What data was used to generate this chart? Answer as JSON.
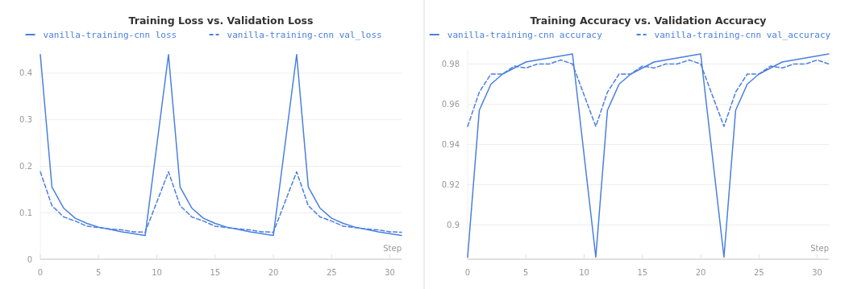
{
  "chart_data": [
    {
      "type": "line",
      "title": "Training Loss vs. Validation Loss",
      "xlabel": "Step",
      "xlim": [
        0,
        31
      ],
      "xticks": [
        0,
        5,
        10,
        15,
        20,
        25,
        30
      ],
      "ylim": [
        0,
        0.45
      ],
      "yticks": [
        0,
        0.1,
        0.2,
        0.3,
        0.4
      ],
      "grid": "y",
      "legend": "top",
      "series": [
        {
          "name": "vanilla-training-cnn loss",
          "color": "#4a7fe0",
          "line_style": "solid",
          "x": [
            0,
            1,
            2,
            3,
            4,
            5,
            6,
            7,
            8,
            9,
            11,
            12,
            13,
            14,
            15,
            16,
            17,
            18,
            19,
            20,
            22,
            23,
            24,
            25,
            26,
            27,
            28,
            29,
            30,
            31
          ],
          "values": [
            0.44,
            0.155,
            0.11,
            0.088,
            0.077,
            0.069,
            0.064,
            0.059,
            0.055,
            0.051,
            0.44,
            0.155,
            0.11,
            0.088,
            0.077,
            0.069,
            0.064,
            0.059,
            0.055,
            0.051,
            0.44,
            0.155,
            0.11,
            0.088,
            0.077,
            0.069,
            0.064,
            0.059,
            0.055,
            0.051
          ]
        },
        {
          "name": "vanilla-training-cnn val_loss",
          "color": "#4a7fe0",
          "line_style": "dashed",
          "x": [
            0,
            1,
            2,
            3,
            4,
            5,
            6,
            7,
            8,
            9,
            11,
            12,
            13,
            14,
            15,
            16,
            17,
            18,
            19,
            20,
            22,
            23,
            24,
            25,
            26,
            27,
            28,
            29,
            30,
            31
          ],
          "values": [
            0.188,
            0.115,
            0.091,
            0.082,
            0.071,
            0.068,
            0.065,
            0.063,
            0.059,
            0.058,
            0.188,
            0.115,
            0.091,
            0.082,
            0.071,
            0.068,
            0.065,
            0.063,
            0.059,
            0.058,
            0.188,
            0.115,
            0.091,
            0.082,
            0.071,
            0.068,
            0.065,
            0.063,
            0.059,
            0.058
          ]
        }
      ]
    },
    {
      "type": "line",
      "title": "Training Accuracy vs. Validation Accuracy",
      "xlabel": "Step",
      "xlim": [
        0,
        31
      ],
      "xticks": [
        0,
        5,
        10,
        15,
        20,
        25,
        30
      ],
      "ylim": [
        0.883,
        0.987
      ],
      "yticks": [
        0.9,
        0.92,
        0.94,
        0.96,
        0.98
      ],
      "grid": "y",
      "legend": "top",
      "series": [
        {
          "name": "vanilla-training-cnn accuracy",
          "color": "#4a7fe0",
          "line_style": "solid",
          "x": [
            0,
            1,
            2,
            3,
            4,
            5,
            6,
            7,
            8,
            9,
            11,
            12,
            13,
            14,
            15,
            16,
            17,
            18,
            19,
            20,
            22,
            23,
            24,
            25,
            26,
            27,
            28,
            29,
            30,
            31
          ],
          "values": [
            0.884,
            0.957,
            0.97,
            0.975,
            0.978,
            0.981,
            0.982,
            0.983,
            0.984,
            0.985,
            0.884,
            0.957,
            0.97,
            0.975,
            0.978,
            0.981,
            0.982,
            0.983,
            0.984,
            0.985,
            0.884,
            0.957,
            0.97,
            0.975,
            0.978,
            0.981,
            0.982,
            0.983,
            0.984,
            0.985
          ]
        },
        {
          "name": "vanilla-training-cnn val_accuracy",
          "color": "#4a7fe0",
          "line_style": "dashed",
          "x": [
            0,
            1,
            2,
            3,
            4,
            5,
            6,
            7,
            8,
            9,
            11,
            12,
            13,
            14,
            15,
            16,
            17,
            18,
            19,
            20,
            22,
            23,
            24,
            25,
            26,
            27,
            28,
            29,
            30,
            31
          ],
          "values": [
            0.949,
            0.966,
            0.975,
            0.975,
            0.979,
            0.978,
            0.98,
            0.98,
            0.982,
            0.98,
            0.949,
            0.966,
            0.975,
            0.975,
            0.979,
            0.978,
            0.98,
            0.98,
            0.982,
            0.98,
            0.949,
            0.966,
            0.975,
            0.975,
            0.979,
            0.978,
            0.98,
            0.98,
            0.982,
            0.98
          ]
        }
      ]
    }
  ]
}
